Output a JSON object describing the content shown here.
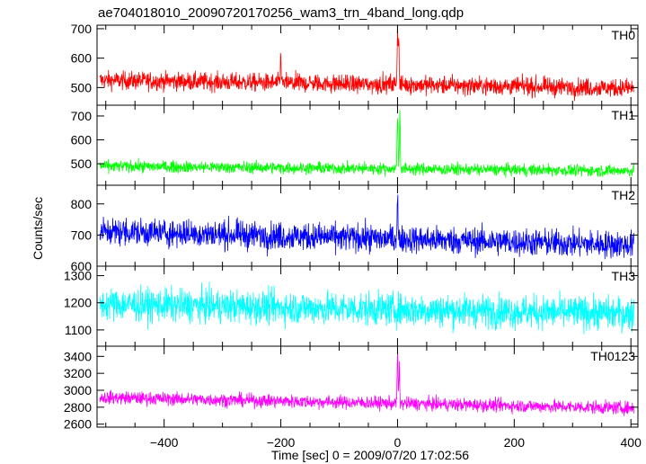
{
  "chart_data": {
    "type": "line",
    "title": "ae704018010_20090720170256_wam3_trn_4band_long.qdp",
    "xlabel": "Time [sec] 0 = 2009/07/20 17:02:56",
    "ylabel": "Counts/sec",
    "xlim": [
      -515,
      412
    ],
    "xticks": [
      -400,
      -200,
      0,
      200,
      400
    ],
    "x_tick_labels": [
      "−400",
      "−200",
      "0",
      "200",
      "400"
    ],
    "grid": false,
    "panels": [
      {
        "name": "TH0",
        "color": "#ff0000",
        "ylim": [
          440,
          712
        ],
        "yticks": [
          500,
          600,
          700
        ],
        "series_summary": {
          "x_start": -510,
          "x_end": 405,
          "baseline_start": 525,
          "baseline_end": 498,
          "noise_amplitude": 28,
          "features": [
            {
              "x": -200,
              "peak": 630
            },
            {
              "x": 0,
              "peak": 712
            },
            {
              "x": 2,
              "peak": 690
            }
          ]
        }
      },
      {
        "name": "TH1",
        "color": "#00ff00",
        "ylim": [
          410,
          745
        ],
        "yticks": [
          500,
          600,
          700
        ],
        "series_summary": {
          "x_start": -510,
          "x_end": 405,
          "baseline_start": 490,
          "baseline_end": 470,
          "noise_amplitude": 22,
          "features": [
            {
              "x": 0,
              "peak": 745
            },
            {
              "x": 4,
              "peak": 740
            }
          ]
        }
      },
      {
        "name": "TH2",
        "color": "#0000ff",
        "ylim": [
          600,
          860
        ],
        "yticks": [
          600,
          700,
          800
        ],
        "series_summary": {
          "x_start": -510,
          "x_end": 405,
          "baseline_start": 712,
          "baseline_end": 668,
          "noise_amplitude": 40,
          "features": [
            {
              "x": 0,
              "peak": 855
            }
          ]
        }
      },
      {
        "name": "TH3",
        "color": "#00ffff",
        "ylim": [
          1040,
          1335
        ],
        "yticks": [
          1100,
          1200,
          1300
        ],
        "series_summary": {
          "x_start": -510,
          "x_end": 405,
          "baseline_start": 1195,
          "baseline_end": 1160,
          "noise_amplitude": 55,
          "features": []
        }
      },
      {
        "name": "TH0123",
        "color": "#ff00ff",
        "ylim": [
          2565,
          3520
        ],
        "yticks": [
          2600,
          2800,
          3000,
          3200,
          3400
        ],
        "series_summary": {
          "x_start": -510,
          "x_end": 405,
          "baseline_start": 2915,
          "baseline_end": 2790,
          "noise_amplitude": 70,
          "features": [
            {
              "x": 0,
              "peak": 3500
            },
            {
              "x": 3,
              "peak": 3380
            }
          ]
        }
      }
    ]
  }
}
